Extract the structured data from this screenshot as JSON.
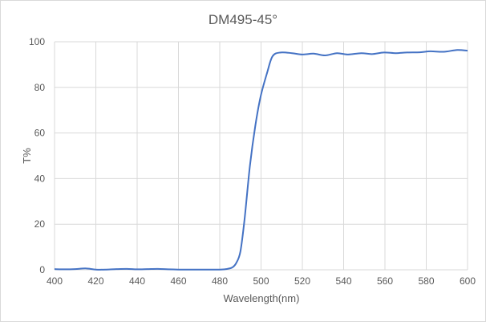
{
  "chart_data": {
    "type": "line",
    "title": "DM495-45°",
    "xlabel": "Wavelength(nm)",
    "ylabel": "T%",
    "xlim": [
      400,
      600
    ],
    "ylim": [
      0,
      100
    ],
    "xticks": [
      400,
      420,
      440,
      460,
      480,
      500,
      520,
      540,
      560,
      580,
      600
    ],
    "yticks": [
      0,
      20,
      40,
      60,
      80,
      100
    ],
    "grid": true,
    "legend": "none",
    "line_color": "#4472c4",
    "series": [
      {
        "x": [
          400,
          405,
          410,
          415,
          420,
          425,
          430,
          435,
          440,
          445,
          450,
          455,
          460,
          465,
          470,
          475,
          480,
          483,
          486,
          488,
          490,
          492,
          494.6,
          497.2,
          499.8,
          503,
          505.6,
          509.5,
          515,
          520,
          525.4,
          531,
          536.8,
          542,
          548.5,
          553.7,
          559.5,
          565.3,
          570.5,
          577,
          582,
          588.5,
          595,
          600
        ],
        "y": [
          0.3,
          0.2,
          0.3,
          0.6,
          0.1,
          0.1,
          0.3,
          0.4,
          0.2,
          0.3,
          0.4,
          0.2,
          0.1,
          0.1,
          0.1,
          0.1,
          0.1,
          0.3,
          1.0,
          3.0,
          8,
          22,
          45.5,
          63,
          76,
          86.6,
          93.7,
          95.3,
          95,
          94.4,
          94.8,
          94,
          95,
          94.4,
          95,
          94.6,
          95.3,
          95,
          95.3,
          95.4,
          95.8,
          95.6,
          96.4,
          96.1
        ]
      }
    ]
  }
}
